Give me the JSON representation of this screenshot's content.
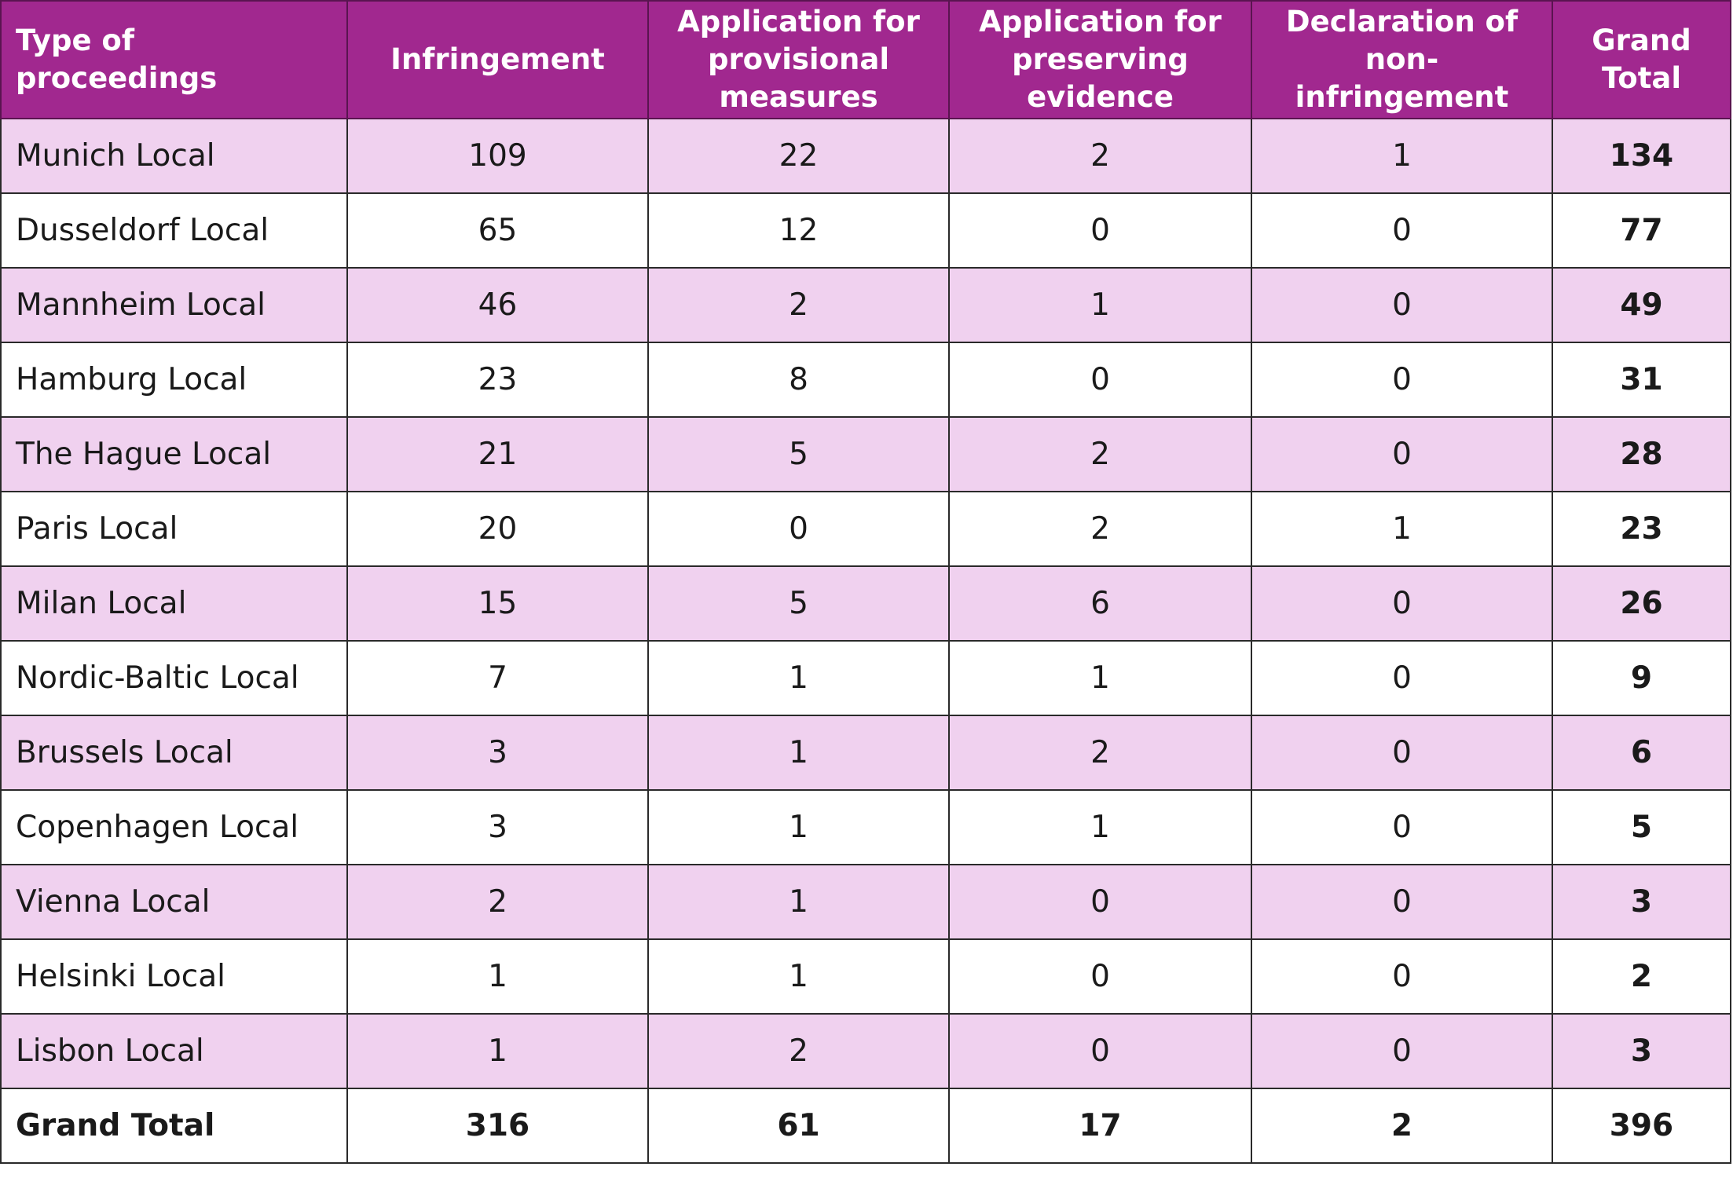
{
  "table": {
    "header": [
      "Type of proceedings",
      "Infringement",
      "Application for provisional measures",
      "Application for preserving evidence",
      "Declaration of non-infringement",
      "Grand Total"
    ],
    "rows": [
      [
        "Munich Local",
        109,
        22,
        2,
        1,
        134
      ],
      [
        "Dusseldorf Local",
        65,
        12,
        0,
        0,
        77
      ],
      [
        "Mannheim Local",
        46,
        2,
        1,
        0,
        49
      ],
      [
        "Hamburg Local",
        23,
        8,
        0,
        0,
        31
      ],
      [
        "The Hague Local",
        21,
        5,
        2,
        0,
        28
      ],
      [
        "Paris Local",
        20,
        0,
        2,
        1,
        23
      ],
      [
        "Milan Local",
        15,
        5,
        6,
        0,
        26
      ],
      [
        "Nordic-Baltic Local",
        7,
        1,
        1,
        0,
        9
      ],
      [
        "Brussels Local",
        3,
        1,
        2,
        0,
        6
      ],
      [
        "Copenhagen Local",
        3,
        1,
        1,
        0,
        5
      ],
      [
        "Vienna Local",
        2,
        1,
        0,
        0,
        3
      ],
      [
        "Helsinki Local",
        1,
        1,
        0,
        0,
        2
      ],
      [
        "Lisbon Local",
        1,
        2,
        0,
        0,
        3
      ]
    ],
    "total": [
      "Grand Total",
      316,
      61,
      17,
      2,
      396
    ]
  }
}
